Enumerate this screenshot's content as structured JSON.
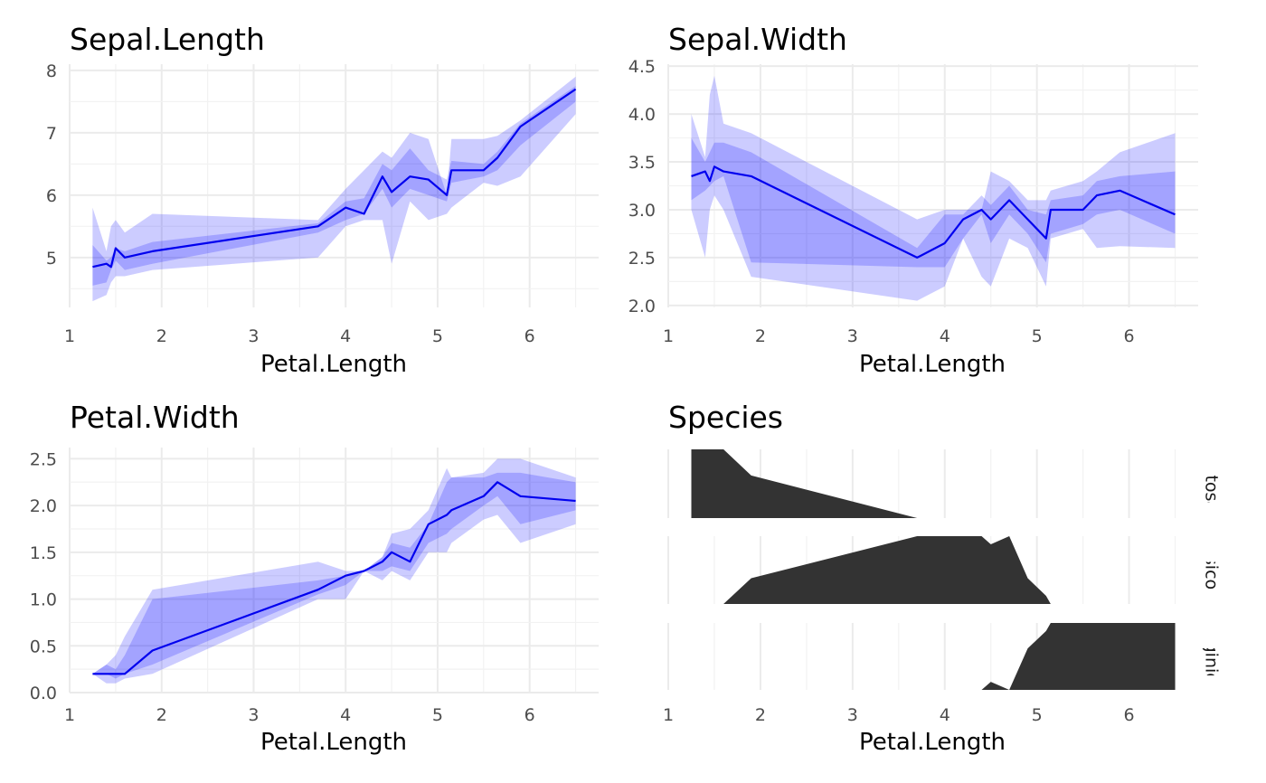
{
  "chart_data": [
    {
      "type": "area",
      "title": "Sepal.Length",
      "xlabel": "Petal.Length",
      "ylabel": "",
      "xlim": [
        1,
        6.75
      ],
      "ylim": [
        4.2,
        8.1
      ],
      "x_ticks": [
        "1",
        "2",
        "3",
        "4",
        "5",
        "6"
      ],
      "y_ticks": [
        "5",
        "6",
        "7",
        "8"
      ],
      "x": [
        1.25,
        1.4,
        1.45,
        1.5,
        1.6,
        1.9,
        3.7,
        4.0,
        4.2,
        4.4,
        4.5,
        4.7,
        4.9,
        5.1,
        5.15,
        5.5,
        5.65,
        5.9,
        6.5
      ],
      "mean": [
        4.85,
        4.9,
        4.85,
        5.15,
        5.0,
        5.1,
        5.5,
        5.8,
        5.7,
        6.3,
        6.05,
        6.3,
        6.25,
        6.0,
        6.4,
        6.4,
        6.6,
        7.1,
        7.7
      ],
      "inner_low": [
        4.55,
        4.6,
        4.8,
        4.95,
        4.8,
        4.9,
        5.4,
        5.6,
        5.7,
        6.1,
        5.8,
        6.1,
        6.0,
        5.9,
        6.2,
        6.3,
        6.4,
        6.8,
        7.5
      ],
      "inner_high": [
        5.2,
        4.95,
        5.0,
        5.15,
        5.1,
        5.25,
        5.55,
        5.9,
        5.95,
        6.5,
        6.4,
        6.75,
        6.4,
        6.25,
        6.55,
        6.5,
        6.7,
        7.15,
        7.75
      ],
      "outer_low": [
        4.3,
        4.4,
        4.6,
        4.7,
        4.7,
        4.8,
        5.0,
        5.5,
        5.6,
        5.6,
        4.9,
        5.9,
        5.6,
        5.7,
        5.8,
        6.2,
        6.15,
        6.3,
        7.3
      ],
      "outer_high": [
        5.8,
        5.1,
        5.5,
        5.6,
        5.4,
        5.7,
        5.6,
        6.1,
        6.4,
        6.7,
        6.6,
        7.0,
        6.9,
        6.0,
        6.9,
        6.9,
        6.95,
        7.2,
        7.9
      ]
    },
    {
      "type": "area",
      "title": "Sepal.Width",
      "xlabel": "Petal.Length",
      "ylabel": "",
      "xlim": [
        1,
        6.75
      ],
      "ylim": [
        1.98,
        4.52
      ],
      "x_ticks": [
        "1",
        "2",
        "3",
        "4",
        "5",
        "6"
      ],
      "y_ticks": [
        "2.0",
        "2.5",
        "3.0",
        "3.5",
        "4.0",
        "4.5"
      ],
      "x": [
        1.25,
        1.4,
        1.45,
        1.5,
        1.6,
        1.9,
        3.7,
        4.0,
        4.2,
        4.4,
        4.5,
        4.7,
        4.9,
        5.1,
        5.15,
        5.5,
        5.65,
        5.9,
        6.5
      ],
      "mean": [
        3.35,
        3.4,
        3.3,
        3.45,
        3.4,
        3.35,
        2.5,
        2.65,
        2.9,
        3.0,
        2.9,
        3.1,
        2.9,
        2.7,
        3.0,
        3.0,
        3.15,
        3.2,
        2.95
      ],
      "inner_low": [
        3.1,
        3.2,
        3.25,
        3.3,
        3.35,
        2.45,
        2.4,
        2.4,
        2.7,
        2.95,
        2.65,
        2.95,
        2.75,
        2.45,
        2.75,
        2.85,
        2.95,
        3.0,
        2.75
      ],
      "inner_high": [
        3.75,
        3.5,
        3.6,
        3.7,
        3.7,
        3.6,
        2.6,
        2.95,
        2.95,
        3.15,
        3.05,
        3.25,
        3.0,
        2.95,
        3.1,
        3.15,
        3.3,
        3.35,
        3.4
      ],
      "outer_low": [
        3.0,
        2.5,
        3.0,
        3.15,
        3.0,
        2.3,
        2.05,
        2.2,
        2.7,
        2.3,
        2.2,
        2.7,
        2.6,
        2.2,
        2.7,
        2.8,
        2.6,
        2.62,
        2.6
      ],
      "outer_high": [
        4.0,
        3.55,
        4.2,
        4.4,
        3.9,
        3.8,
        2.9,
        3.0,
        3.0,
        3.0,
        3.4,
        3.3,
        3.1,
        3.1,
        3.2,
        3.3,
        3.4,
        3.6,
        3.8
      ]
    },
    {
      "type": "area",
      "title": "Petal.Width",
      "xlabel": "Petal.Length",
      "ylabel": "",
      "xlim": [
        1,
        6.75
      ],
      "ylim": [
        0,
        2.62
      ],
      "x_ticks": [
        "1",
        "2",
        "3",
        "4",
        "5",
        "6"
      ],
      "y_ticks": [
        "0.0",
        "0.5",
        "1.0",
        "1.5",
        "2.0",
        "2.5"
      ],
      "x": [
        1.25,
        1.4,
        1.5,
        1.6,
        1.9,
        3.7,
        4.0,
        4.2,
        4.4,
        4.5,
        4.7,
        4.9,
        5.1,
        5.15,
        5.5,
        5.65,
        5.9,
        6.5
      ],
      "mean": [
        0.2,
        0.2,
        0.2,
        0.2,
        0.45,
        1.1,
        1.25,
        1.3,
        1.4,
        1.5,
        1.4,
        1.8,
        1.9,
        1.95,
        2.1,
        2.25,
        2.1,
        2.05
      ],
      "inner_low": [
        0.2,
        0.2,
        0.15,
        0.2,
        0.3,
        1.05,
        1.15,
        1.3,
        1.3,
        1.35,
        1.3,
        1.6,
        1.7,
        1.75,
        2.0,
        2.1,
        1.8,
        1.95
      ],
      "inner_high": [
        0.2,
        0.3,
        0.25,
        0.4,
        1.0,
        1.2,
        1.25,
        1.3,
        1.45,
        1.6,
        1.55,
        1.8,
        2.25,
        2.3,
        2.3,
        2.35,
        2.35,
        2.25
      ],
      "outer_low": [
        0.2,
        0.1,
        0.1,
        0.15,
        0.2,
        1.0,
        1.0,
        1.3,
        1.2,
        1.3,
        1.2,
        1.5,
        1.5,
        1.6,
        1.85,
        1.9,
        1.6,
        1.8
      ],
      "outer_high": [
        0.2,
        0.3,
        0.4,
        0.6,
        1.1,
        1.4,
        1.3,
        1.3,
        1.45,
        1.7,
        1.75,
        1.95,
        2.4,
        2.3,
        2.35,
        2.5,
        2.5,
        2.3
      ]
    },
    {
      "type": "area",
      "title": "Species",
      "xlabel": "Petal.Length",
      "ylabel": "",
      "xlim": [
        1,
        6.75
      ],
      "x_ticks": [
        "1",
        "2",
        "3",
        "4",
        "5",
        "6"
      ],
      "facets": [
        {
          "label": "setosa",
          "x": [
            1.25,
            1.25,
            1.6,
            1.9,
            3.7
          ],
          "y": [
            0,
            1.0,
            1.0,
            0.62,
            0
          ]
        },
        {
          "label": "versicolor",
          "x": [
            1.6,
            1.9,
            3.7,
            4.4,
            4.5,
            4.7,
            4.9,
            5.1,
            5.15
          ],
          "y": [
            0,
            0.38,
            1.0,
            1.0,
            0.88,
            1.0,
            0.38,
            0.12,
            0
          ]
        },
        {
          "label": "virginica",
          "x": [
            4.4,
            4.5,
            4.7,
            4.9,
            5.1,
            5.15,
            6.5,
            6.5
          ],
          "y": [
            0,
            0.12,
            0,
            0.62,
            0.88,
            1.0,
            1.0,
            0
          ]
        }
      ]
    }
  ]
}
